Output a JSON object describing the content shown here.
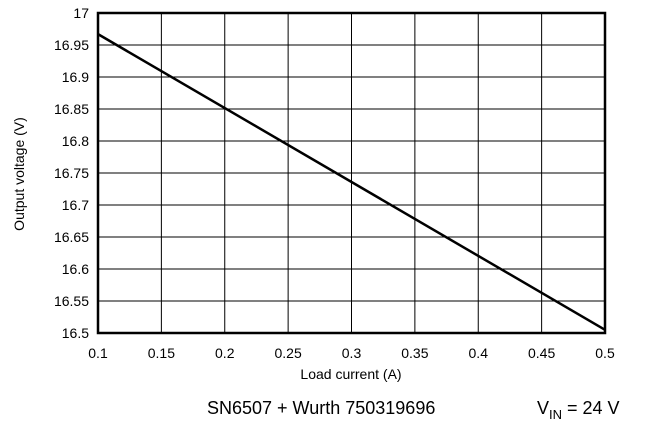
{
  "chart_data": {
    "type": "line",
    "xlabel": "Load current (A)",
    "ylabel": "Output voltage (V)",
    "xlim": [
      0.1,
      0.5
    ],
    "ylim": [
      16.5,
      17
    ],
    "x_ticks": [
      "0.1",
      "0.15",
      "0.2",
      "0.25",
      "0.3",
      "0.35",
      "0.4",
      "0.45",
      "0.5"
    ],
    "y_ticks": [
      "16.5",
      "16.55",
      "16.6",
      "16.65",
      "16.7",
      "16.75",
      "16.8",
      "16.85",
      "16.9",
      "16.95",
      "17"
    ],
    "grid": true,
    "series": [
      {
        "x": [
          0.1,
          0.5
        ],
        "y": [
          16.967,
          16.505
        ]
      }
    ]
  },
  "caption": {
    "device": "SN6507 + Wurth 750319696",
    "vin_prefix": "V",
    "vin_sub": "IN",
    "vin_value": " = 24 V"
  },
  "colors": {
    "line": "#000000",
    "grid": "#000000",
    "background": "#ffffff"
  }
}
